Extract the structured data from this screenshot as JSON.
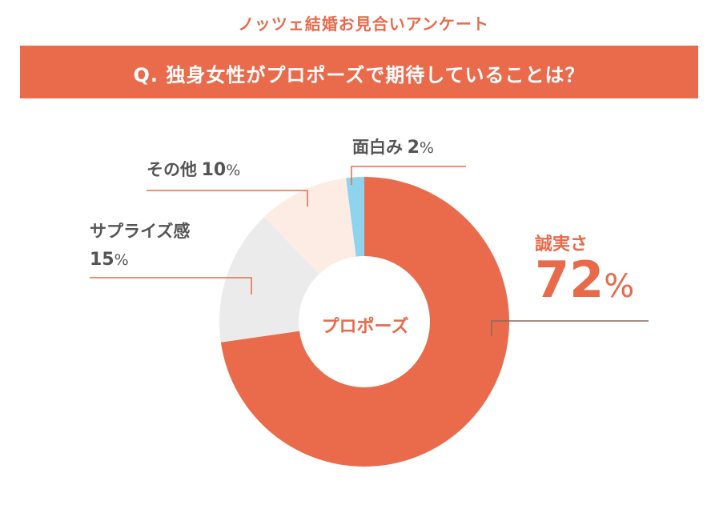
{
  "header": {
    "subtitle": "ノッツェ結婚お見合いアンケート",
    "question": "Q. 独身女性がプロポーズで期待していることは？"
  },
  "chart_data": {
    "type": "pie",
    "center_label": "プロポーズ",
    "percent_sign": "%",
    "slices": [
      {
        "label": "誠実さ",
        "value": 72,
        "color": "#ea6b4c"
      },
      {
        "label": "サプライズ感",
        "value": 15,
        "color": "#ebebeb"
      },
      {
        "label": "その他",
        "value": 10,
        "color": "#fdece4"
      },
      {
        "label": "面白み",
        "value": 2,
        "color": "#8fd4ef"
      }
    ]
  }
}
